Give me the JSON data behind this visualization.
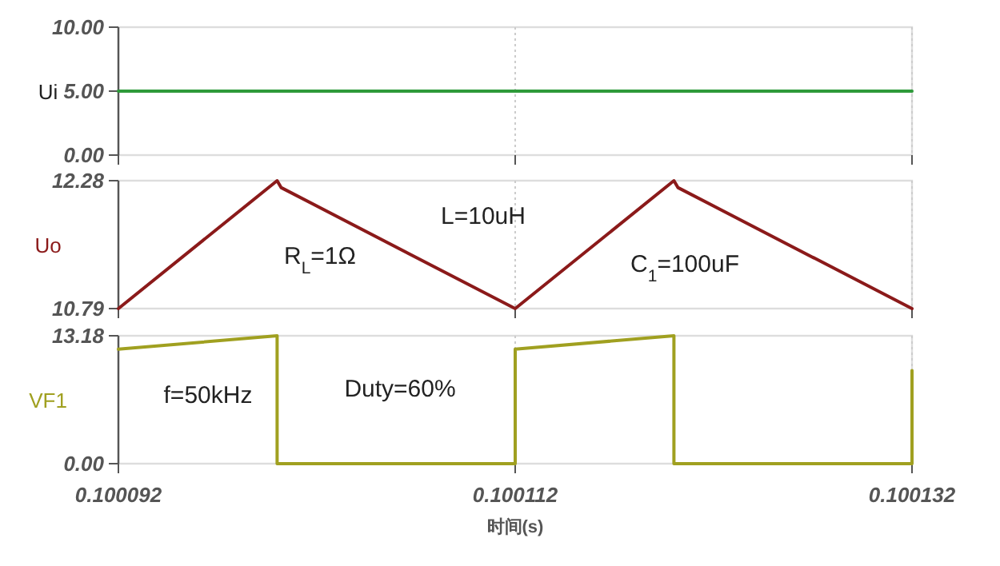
{
  "chart_data": [
    {
      "type": "line",
      "ylabel": "Ui",
      "xlim": [
        0.100092,
        0.100132
      ],
      "ylim": [
        0,
        10
      ],
      "yticks": [
        {
          "value": 0,
          "label": "0.00"
        },
        {
          "value": 5,
          "label": "5.00"
        },
        {
          "value": 10,
          "label": "10.00"
        }
      ],
      "xticks": [
        0.100092,
        0.100112,
        0.100132
      ],
      "tick_labels": "y",
      "grid": "x",
      "series": [
        {
          "color": "#2e9a3a",
          "x": [
            0.100092,
            0.100132
          ],
          "values": [
            5,
            5
          ]
        }
      ]
    },
    {
      "type": "line",
      "ylabel": "Uo",
      "xlim": [
        0.100092,
        0.100132
      ],
      "ylim": [
        10.79,
        12.28
      ],
      "yticks": [
        10.79,
        12.28
      ],
      "xticks": [
        0.100092,
        0.100112,
        0.100132
      ],
      "tick_labels": "y",
      "grid": "x",
      "annotations": [
        "R$_{L}$=1Ω",
        "L=10uH",
        "C$_{1}$=100uF"
      ],
      "series": [
        {
          "color": "#8b1a1a",
          "x": [
            0.100092,
            0.1001,
            0.1001002,
            0.100112,
            0.10012,
            0.1001202,
            0.100132
          ],
          "values": [
            10.79,
            12.28,
            12.2,
            10.79,
            12.28,
            12.2,
            10.79
          ]
        }
      ]
    },
    {
      "type": "line",
      "ylabel": "VF1",
      "xlabel": "时间(s)",
      "xlim": [
        0.100092,
        0.100132
      ],
      "ylim": [
        0,
        13.18
      ],
      "yticks": [
        {
          "value": 0,
          "label": "0.00"
        },
        13.18
      ],
      "xticks": [
        0.100092,
        0.100112,
        0.100132
      ],
      "grid": "x",
      "annotations": [
        "f=50kHz",
        "Duty=60%"
      ],
      "series": [
        {
          "color": "#a0a020",
          "x": [
            0.100092,
            0.1001,
            0.1001,
            0.100112,
            0.100112,
            0.10012,
            0.10012,
            0.100132,
            0.100132
          ],
          "values": [
            11.8,
            13.18,
            0,
            0,
            11.8,
            13.18,
            0,
            0,
            9.6
          ]
        }
      ]
    }
  ]
}
